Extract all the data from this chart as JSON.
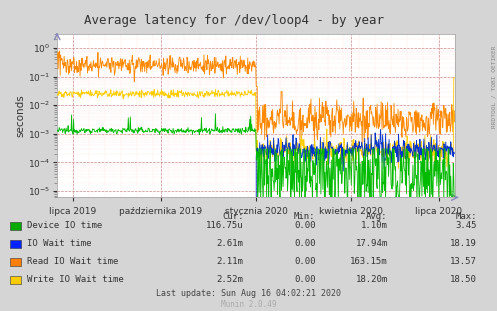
{
  "title": "Average latency for /dev/loop4 - by year",
  "ylabel": "seconds",
  "right_label": "RRDTOOL / TOBI OETIKER",
  "bg_color": "#d5d5d5",
  "plot_bg_color": "#ffffff",
  "x_tick_labels": [
    "lipca 2019",
    "października 2019",
    "stycznia 2020",
    "kwietnia 2020",
    "lipca 2020"
  ],
  "legend": [
    {
      "label": "Device IO time",
      "color": "#00aa00"
    },
    {
      "label": "IO Wait time",
      "color": "#0022ff"
    },
    {
      "label": "Read IO Wait time",
      "color": "#ff7f00"
    },
    {
      "label": "Write IO Wait time",
      "color": "#ffcc00"
    }
  ],
  "table_headers": [
    "Cur:",
    "Min:",
    "Avg:",
    "Max:"
  ],
  "table_rows": [
    [
      "116.75u",
      "0.00",
      "1.10m",
      "3.45"
    ],
    [
      "2.61m",
      "0.00",
      "17.94m",
      "18.19"
    ],
    [
      "2.11m",
      "0.00",
      "163.15m",
      "13.57"
    ],
    [
      "2.52m",
      "0.00",
      "18.20m",
      "18.50"
    ]
  ],
  "footer": "Last update: Sun Aug 16 04:02:21 2020",
  "munin_version": "Munin 2.0.49"
}
